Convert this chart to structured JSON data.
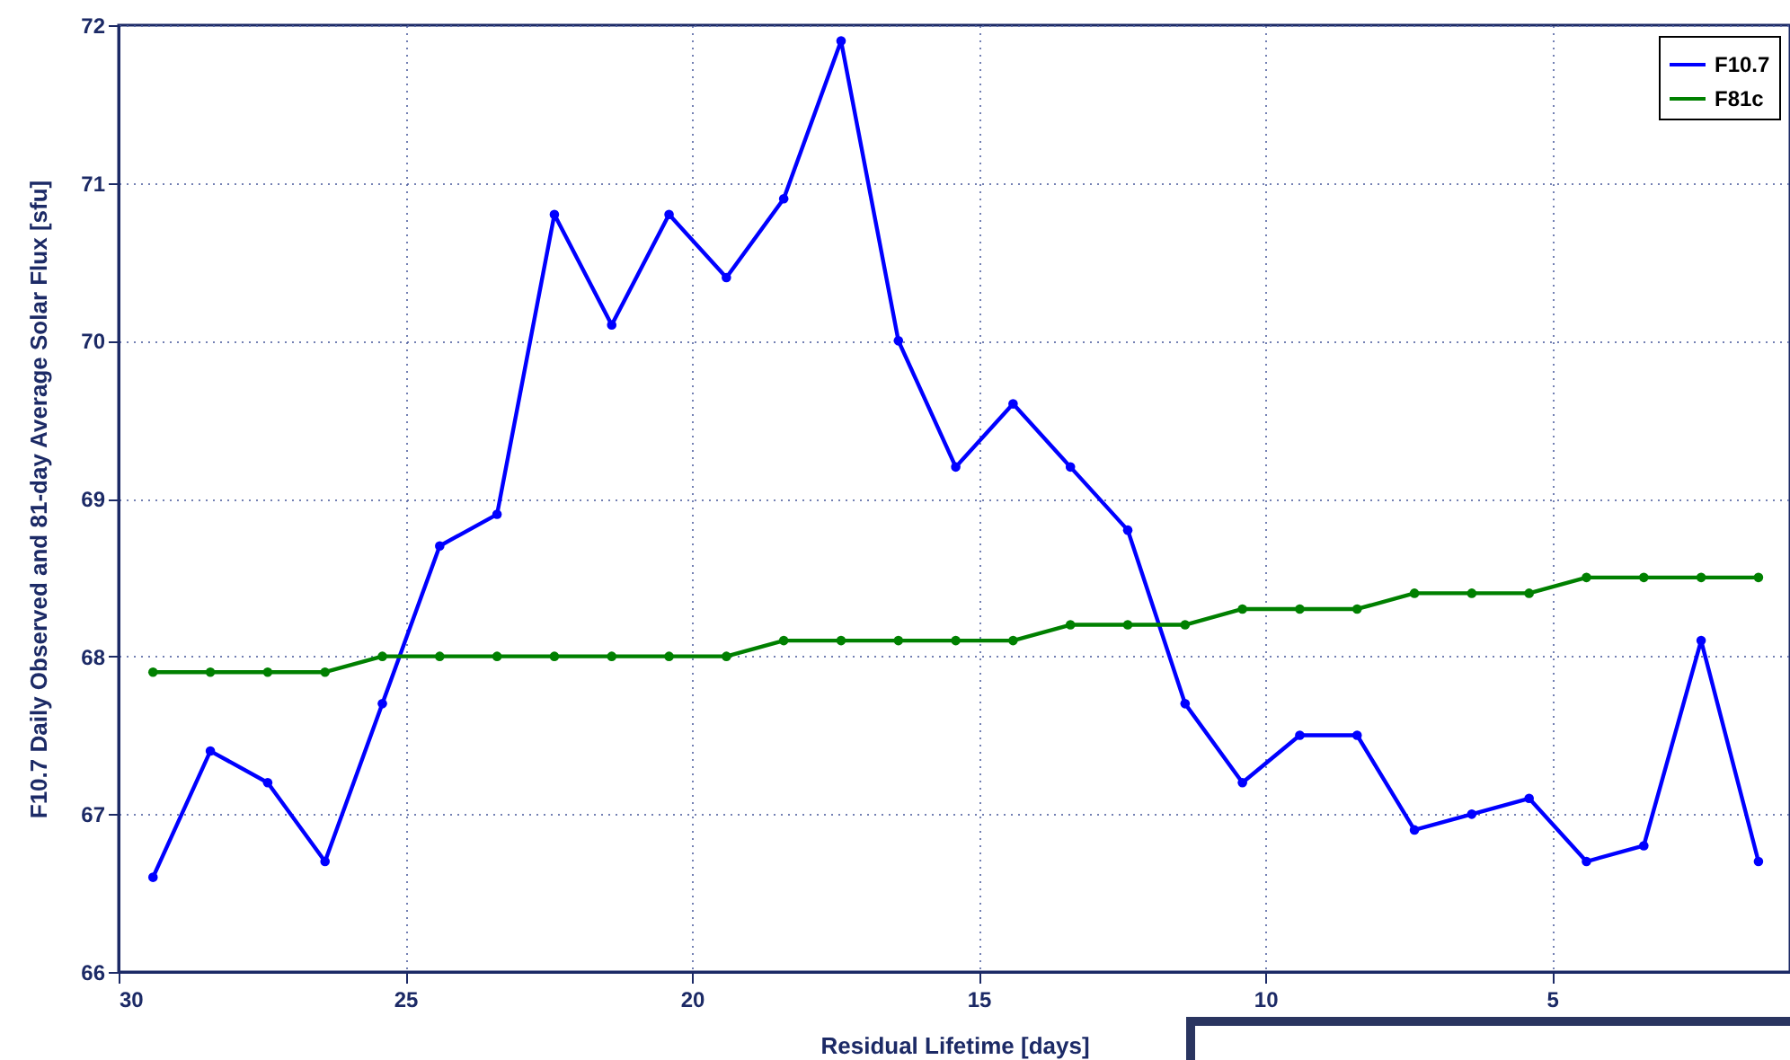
{
  "chart_data": {
    "type": "line",
    "xlabel": "Residual Lifetime [days]",
    "ylabel": "F10.7 Daily Observed and 81-day Average Solar Flux [sfu]",
    "x": [
      29.4,
      28.4,
      27.4,
      26.4,
      25.4,
      24.4,
      23.4,
      22.4,
      21.4,
      20.4,
      19.4,
      18.4,
      17.4,
      16.4,
      15.4,
      14.4,
      13.4,
      12.4,
      11.4,
      10.4,
      9.4,
      8.4,
      7.4,
      6.4,
      5.4,
      4.4,
      3.4,
      2.4,
      1.4
    ],
    "series": [
      {
        "name": "F10.7",
        "color": "#0000ff",
        "values": [
          66.6,
          67.4,
          67.2,
          66.7,
          67.7,
          68.7,
          68.9,
          70.8,
          70.1,
          70.8,
          70.4,
          70.9,
          71.9,
          70.0,
          69.2,
          69.6,
          69.2,
          68.8,
          67.7,
          67.2,
          67.5,
          67.5,
          66.9,
          67.0,
          67.1,
          66.7,
          66.8,
          68.1,
          66.7
        ]
      },
      {
        "name": "F81c",
        "color": "#008000",
        "values": [
          67.9,
          67.9,
          67.9,
          67.9,
          68.0,
          68.0,
          68.0,
          68.0,
          68.0,
          68.0,
          68.0,
          68.1,
          68.1,
          68.1,
          68.1,
          68.1,
          68.2,
          68.2,
          68.2,
          68.3,
          68.3,
          68.3,
          68.4,
          68.4,
          68.4,
          68.5,
          68.5,
          68.5,
          68.5
        ]
      }
    ],
    "xlim": [
      30,
      0.85
    ],
    "xticks": [
      30,
      25,
      20,
      15,
      10,
      5
    ],
    "ylim": [
      66,
      72
    ],
    "yticks": [
      66,
      67,
      68,
      69,
      70,
      71,
      72
    ],
    "grid": true,
    "legend": "top right",
    "marker": "circle",
    "line_style": "solid"
  }
}
